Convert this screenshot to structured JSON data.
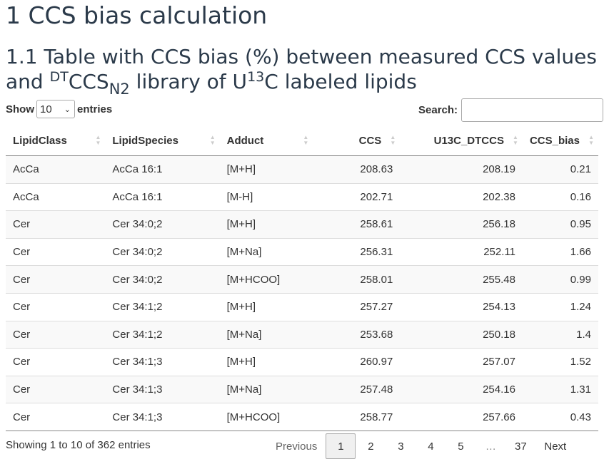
{
  "heading1": "1 CCS bias calculation",
  "heading2": {
    "part1": "1.1 Table with CCS bias (%) between measured CCS values and ",
    "sup1": "DT",
    "part2": "CCS",
    "sub1": "N2",
    "part3": " library of U",
    "sup2": "13",
    "part4": "C labeled lipids"
  },
  "length": {
    "prefix": "Show",
    "selected": "10",
    "suffix": "entries"
  },
  "search": {
    "label": "Search:",
    "value": "",
    "placeholder": ""
  },
  "table": {
    "columns": [
      "LipidClass",
      "LipidSpecies",
      "Adduct",
      "CCS",
      "U13C_DTCCS",
      "CCS_bias"
    ],
    "rows": [
      [
        "AcCa",
        "AcCa 16:1",
        "[M+H]",
        "208.63",
        "208.19",
        "0.21"
      ],
      [
        "AcCa",
        "AcCa 16:1",
        "[M-H]",
        "202.71",
        "202.38",
        "0.16"
      ],
      [
        "Cer",
        "Cer 34:0;2",
        "[M+H]",
        "258.61",
        "256.18",
        "0.95"
      ],
      [
        "Cer",
        "Cer 34:0;2",
        "[M+Na]",
        "256.31",
        "252.11",
        "1.66"
      ],
      [
        "Cer",
        "Cer 34:0;2",
        "[M+HCOO]",
        "258.01",
        "255.48",
        "0.99"
      ],
      [
        "Cer",
        "Cer 34:1;2",
        "[M+H]",
        "257.27",
        "254.13",
        "1.24"
      ],
      [
        "Cer",
        "Cer 34:1;2",
        "[M+Na]",
        "253.68",
        "250.18",
        "1.4"
      ],
      [
        "Cer",
        "Cer 34:1;3",
        "[M+H]",
        "260.97",
        "257.07",
        "1.52"
      ],
      [
        "Cer",
        "Cer 34:1;3",
        "[M+Na]",
        "257.48",
        "254.16",
        "1.31"
      ],
      [
        "Cer",
        "Cer 34:1;3",
        "[M+HCOO]",
        "258.77",
        "257.66",
        "0.43"
      ]
    ]
  },
  "info": "Showing 1 to 10 of 362 entries",
  "pagination": {
    "previous": "Previous",
    "pages": [
      "1",
      "2",
      "3",
      "4",
      "5"
    ],
    "ellipsis": "…",
    "last": "37",
    "next": "Next",
    "current": "1"
  }
}
